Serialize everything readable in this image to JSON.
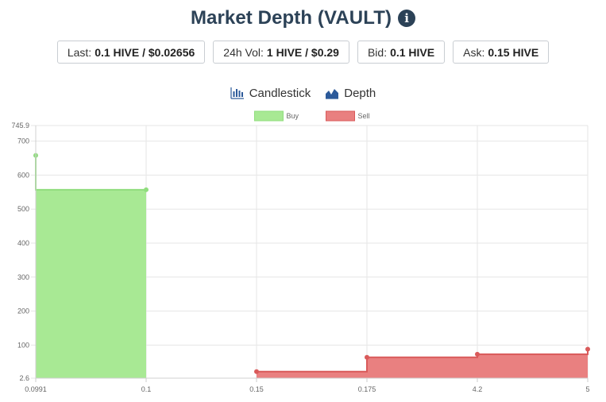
{
  "title": "Market Depth (VAULT)",
  "stats": [
    {
      "label": "Last:",
      "value": "0.1 HIVE / $0.02656"
    },
    {
      "label": "24h Vol:",
      "value": "1 HIVE / $0.29"
    },
    {
      "label": "Bid:",
      "value": "0.1 HIVE"
    },
    {
      "label": "Ask:",
      "value": "0.15 HIVE"
    }
  ],
  "tabs": [
    {
      "label": "Candlestick",
      "icon": "candlestick-icon"
    },
    {
      "label": "Depth",
      "icon": "depth-chart-icon"
    }
  ],
  "chart_data": {
    "type": "area",
    "categories": [
      "0.0991",
      "0.1",
      "0.15",
      "0.175",
      "4.2",
      "5"
    ],
    "ylim": [
      2.6,
      745.9
    ],
    "y_ticks": [
      "745.9",
      "700",
      "600",
      "500",
      "400",
      "300",
      "200",
      "100",
      "2.6"
    ],
    "legend_position": "top-center",
    "grid": true,
    "series": [
      {
        "name": "Buy",
        "color": "#a8e994",
        "stroke": "#90dd7e",
        "points": [
          {
            "x": "0.0991",
            "y": 658
          },
          {
            "x": "0.1",
            "y": 557
          }
        ]
      },
      {
        "name": "Sell",
        "color": "#e98080",
        "stroke": "#d95a5a",
        "points": [
          {
            "x": "0.15",
            "y": 22
          },
          {
            "x": "0.175",
            "y": 64
          },
          {
            "x": "4.2",
            "y": 73
          },
          {
            "x": "5",
            "y": 88
          }
        ]
      }
    ]
  }
}
